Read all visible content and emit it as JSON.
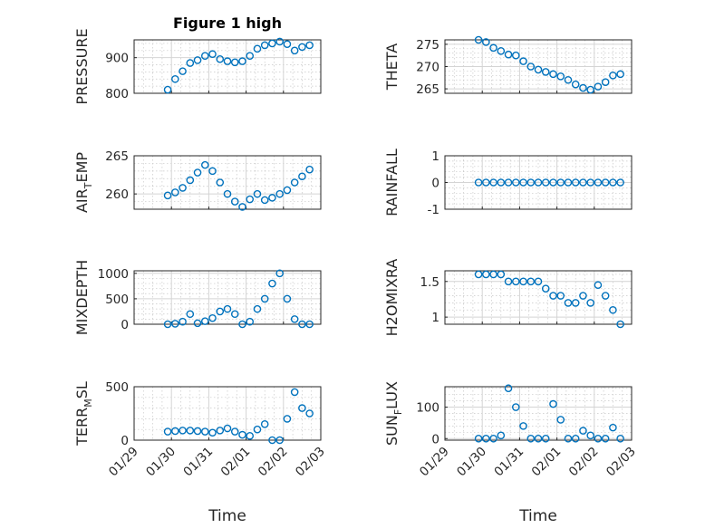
{
  "figure": {
    "title": "Figure 1 high"
  },
  "chart_data": [
    {
      "type": "scatter",
      "ylabel": "PRESSURE",
      "ylim": [
        800,
        950
      ],
      "yticks": [
        800,
        900
      ],
      "xlim": [
        "01/29",
        "02/03"
      ],
      "xticks": [
        "01/29",
        "01/30",
        "01/31",
        "02/01",
        "02/02",
        "02/03"
      ],
      "show_xticklabels": false,
      "grid": true,
      "series": [
        {
          "x": [
            0.9,
            1.1,
            1.3,
            1.5,
            1.7,
            1.9,
            2.1,
            2.3,
            2.5,
            2.7,
            2.9,
            3.1,
            3.3,
            3.5,
            3.7,
            3.9,
            4.1,
            4.3,
            4.5,
            4.7
          ],
          "values": [
            810,
            840,
            862,
            885,
            893,
            905,
            910,
            896,
            890,
            887,
            890,
            905,
            925,
            935,
            940,
            945,
            938,
            920,
            930,
            935
          ]
        }
      ]
    },
    {
      "type": "scatter",
      "ylabel": "THETA",
      "ylim": [
        264,
        276
      ],
      "yticks": [
        265,
        270,
        275
      ],
      "xlim": [
        "01/29",
        "02/03"
      ],
      "xticks": [
        "01/29",
        "01/30",
        "01/31",
        "02/01",
        "02/02",
        "02/03"
      ],
      "show_xticklabels": false,
      "grid": true,
      "series": [
        {
          "x": [
            0.9,
            1.1,
            1.3,
            1.5,
            1.7,
            1.9,
            2.1,
            2.3,
            2.5,
            2.7,
            2.9,
            3.1,
            3.3,
            3.5,
            3.7,
            3.9,
            4.1,
            4.3,
            4.5,
            4.7
          ],
          "values": [
            276,
            275.5,
            274.2,
            273.5,
            272.7,
            272.5,
            271.2,
            270,
            269.3,
            268.8,
            268.3,
            267.8,
            267,
            266,
            265.2,
            264.8,
            265.5,
            266.5,
            268,
            268.3
          ]
        }
      ]
    },
    {
      "type": "scatter",
      "ylabel": "AIR_TEMP",
      "ylim": [
        258,
        265
      ],
      "yticks": [
        260,
        265
      ],
      "xlim": [
        "01/29",
        "02/03"
      ],
      "xticks": [
        "01/29",
        "01/30",
        "01/31",
        "02/01",
        "02/02",
        "02/03"
      ],
      "show_xticklabels": false,
      "grid": true,
      "series": [
        {
          "x": [
            0.9,
            1.1,
            1.3,
            1.5,
            1.7,
            1.9,
            2.1,
            2.3,
            2.5,
            2.7,
            2.9,
            3.1,
            3.3,
            3.5,
            3.7,
            3.9,
            4.1,
            4.3,
            4.5,
            4.7
          ],
          "values": [
            259.8,
            260.2,
            260.8,
            261.8,
            262.8,
            263.8,
            263,
            261.5,
            260,
            259,
            258.3,
            259.3,
            260,
            259.2,
            259.5,
            260,
            260.5,
            261.5,
            262.3,
            263.2
          ]
        }
      ]
    },
    {
      "type": "scatter",
      "ylabel": "RAINFALL",
      "ylim": [
        -1,
        1
      ],
      "yticks": [
        -1,
        0,
        1
      ],
      "xlim": [
        "01/29",
        "02/03"
      ],
      "xticks": [
        "01/29",
        "01/30",
        "01/31",
        "02/01",
        "02/02",
        "02/03"
      ],
      "show_xticklabels": false,
      "grid": true,
      "series": [
        {
          "x": [
            0.9,
            1.1,
            1.3,
            1.5,
            1.7,
            1.9,
            2.1,
            2.3,
            2.5,
            2.7,
            2.9,
            3.1,
            3.3,
            3.5,
            3.7,
            3.9,
            4.1,
            4.3,
            4.5,
            4.7
          ],
          "values": [
            0,
            0,
            0,
            0,
            0,
            0,
            0,
            0,
            0,
            0,
            0,
            0,
            0,
            0,
            0,
            0,
            0,
            0,
            0,
            0
          ]
        }
      ]
    },
    {
      "type": "scatter",
      "ylabel": "MIXDEPTH",
      "ylim": [
        0,
        1050
      ],
      "yticks": [
        0,
        500,
        1000
      ],
      "xlim": [
        "01/29",
        "02/03"
      ],
      "xticks": [
        "01/29",
        "01/30",
        "01/31",
        "02/01",
        "02/02",
        "02/03"
      ],
      "show_xticklabels": false,
      "grid": true,
      "series": [
        {
          "x": [
            0.9,
            1.1,
            1.3,
            1.5,
            1.7,
            1.9,
            2.1,
            2.3,
            2.5,
            2.7,
            2.9,
            3.1,
            3.3,
            3.5,
            3.7,
            3.9,
            4.1,
            4.3,
            4.5,
            4.7
          ],
          "values": [
            0,
            10,
            50,
            200,
            20,
            60,
            120,
            250,
            300,
            200,
            0,
            50,
            300,
            500,
            800,
            1000,
            500,
            100,
            0,
            0
          ]
        }
      ]
    },
    {
      "type": "scatter",
      "ylabel": "H2OMIXRA",
      "ylim": [
        0.9,
        1.65
      ],
      "yticks": [
        1,
        1.5
      ],
      "xlim": [
        "01/29",
        "02/03"
      ],
      "xticks": [
        "01/29",
        "01/30",
        "01/31",
        "02/01",
        "02/02",
        "02/03"
      ],
      "show_xticklabels": false,
      "grid": true,
      "series": [
        {
          "x": [
            0.9,
            1.1,
            1.3,
            1.5,
            1.7,
            1.9,
            2.1,
            2.3,
            2.5,
            2.7,
            2.9,
            3.1,
            3.3,
            3.5,
            3.7,
            3.9,
            4.1,
            4.3,
            4.5,
            4.7
          ],
          "values": [
            1.6,
            1.6,
            1.6,
            1.6,
            1.5,
            1.5,
            1.5,
            1.5,
            1.5,
            1.4,
            1.3,
            1.3,
            1.2,
            1.2,
            1.3,
            1.2,
            1.45,
            1.3,
            1.1,
            0.9
          ]
        }
      ]
    },
    {
      "type": "scatter",
      "ylabel": "TERR_MSL",
      "ylim": [
        0,
        500
      ],
      "yticks": [
        0,
        500
      ],
      "xlim": [
        "01/29",
        "02/03"
      ],
      "xticks": [
        "01/29",
        "01/30",
        "01/31",
        "02/01",
        "02/02",
        "02/03"
      ],
      "show_xticklabels": true,
      "grid": true,
      "series": [
        {
          "x": [
            0.9,
            1.1,
            1.3,
            1.5,
            1.7,
            1.9,
            2.1,
            2.3,
            2.5,
            2.7,
            2.9,
            3.1,
            3.3,
            3.5,
            3.7,
            3.9,
            4.1,
            4.3,
            4.5,
            4.7
          ],
          "values": [
            80,
            85,
            90,
            90,
            85,
            80,
            70,
            90,
            110,
            80,
            50,
            40,
            100,
            150,
            0,
            0,
            200,
            450,
            300,
            250
          ]
        }
      ]
    },
    {
      "type": "scatter",
      "ylabel": "SUN_FLUX",
      "ylim": [
        -5,
        165
      ],
      "yticks": [
        0,
        100
      ],
      "xlim": [
        "01/29",
        "02/03"
      ],
      "xticks": [
        "01/29",
        "01/30",
        "01/31",
        "02/01",
        "02/02",
        "02/03"
      ],
      "show_xticklabels": true,
      "grid": true,
      "series": [
        {
          "x": [
            0.9,
            1.1,
            1.3,
            1.5,
            1.7,
            1.9,
            2.1,
            2.3,
            2.5,
            2.7,
            2.9,
            3.1,
            3.3,
            3.5,
            3.7,
            3.9,
            4.1,
            4.3,
            4.5,
            4.7
          ],
          "values": [
            0,
            0,
            0,
            10,
            160,
            100,
            40,
            0,
            0,
            0,
            110,
            60,
            0,
            0,
            25,
            10,
            0,
            0,
            35,
            0
          ]
        }
      ]
    }
  ],
  "xlabel": "Time"
}
